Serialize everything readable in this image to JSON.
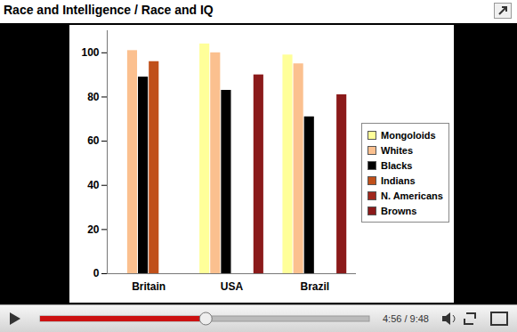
{
  "chart_data": {
    "type": "bar",
    "title": "Race and Intelligence / Race and IQ",
    "categories": [
      "Britain",
      "USA",
      "Brazil"
    ],
    "series": [
      {
        "name": "Mongoloids",
        "color": "#ffff99",
        "values": [
          null,
          104,
          99
        ]
      },
      {
        "name": "Whites",
        "color": "#fbc08f",
        "values": [
          101,
          100,
          95
        ]
      },
      {
        "name": "Blacks",
        "color": "#000000",
        "values": [
          89,
          83,
          71
        ]
      },
      {
        "name": "Indians",
        "color": "#c0501a",
        "values": [
          96,
          null,
          null
        ]
      },
      {
        "name": "N. Americans",
        "color": "#a0281e",
        "values": [
          null,
          null,
          null
        ]
      },
      {
        "name": "Browns",
        "color": "#8b1a1a",
        "values": [
          null,
          90,
          81
        ]
      }
    ],
    "ylim": [
      0,
      110
    ],
    "yticks": [
      0,
      20,
      40,
      60,
      80,
      100
    ],
    "grid": false,
    "legend": "right"
  },
  "player": {
    "time": "4:56 / 9:48"
  }
}
